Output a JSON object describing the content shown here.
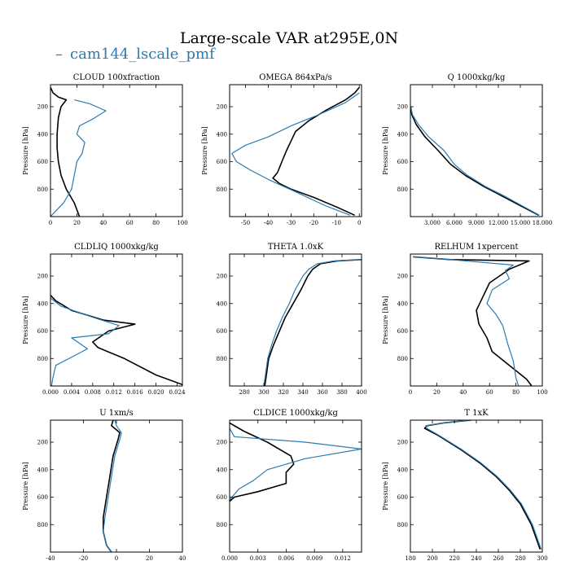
{
  "figure": {
    "title": "Large-scale VAR at295E,0N",
    "legend_label": "cam144_lscale_pmf",
    "legend_marker": "–",
    "colors": {
      "model": "#2b7bb0",
      "reference": "#000000"
    }
  },
  "chart_data": [
    {
      "type": "line",
      "title": "CLOUD  100xfraction",
      "ylabel": "Pressure [hPa]",
      "xlim": [
        0,
        100
      ],
      "ylim": [
        1000,
        40
      ],
      "y_inverted": true,
      "xticks": [
        0,
        20,
        40,
        60,
        80,
        100
      ],
      "xtick_labels": [
        "0",
        "20",
        "40",
        "60",
        "80",
        "100"
      ],
      "yticks": [
        200,
        400,
        600,
        800
      ],
      "ytick_labels": [
        "200",
        "400",
        "600",
        "800"
      ],
      "series": [
        {
          "name": "reference",
          "color": "#000000",
          "x": [
            0,
            2,
            6,
            12,
            8,
            6,
            5,
            5,
            6,
            8,
            12,
            18,
            22
          ],
          "y": [
            60,
            100,
            130,
            150,
            200,
            280,
            400,
            500,
            600,
            700,
            800,
            900,
            1000
          ]
        },
        {
          "name": "cam144_lscale_pmf",
          "color": "#2b7bb0",
          "x": [
            18,
            30,
            42,
            32,
            22,
            20,
            26,
            24,
            20,
            18,
            16,
            10,
            2,
            0
          ],
          "y": [
            150,
            180,
            230,
            290,
            340,
            400,
            460,
            540,
            600,
            700,
            800,
            900,
            980,
            1000
          ]
        }
      ]
    },
    {
      "type": "line",
      "title": "OMEGA  864xPa/s",
      "ylabel": "Pressure [hPa]",
      "xlim": [
        -57,
        1
      ],
      "ylim": [
        1000,
        40
      ],
      "y_inverted": true,
      "xticks": [
        -50,
        -40,
        -30,
        -20,
        -10,
        0
      ],
      "xtick_labels": [
        "-50",
        "-40",
        "-30",
        "-20",
        "-10",
        "0"
      ],
      "yticks": [
        200,
        400,
        600,
        800
      ],
      "ytick_labels": [
        "200",
        "400",
        "600",
        "800"
      ],
      "series": [
        {
          "name": "reference",
          "color": "#000000",
          "x": [
            0,
            -2,
            -6,
            -14,
            -22,
            -28,
            -30,
            -32,
            -34,
            -36,
            -38,
            -35,
            -30,
            -20,
            -10,
            -2
          ],
          "y": [
            60,
            100,
            150,
            220,
            300,
            380,
            450,
            520,
            600,
            680,
            720,
            760,
            800,
            860,
            930,
            990
          ]
        },
        {
          "name": "cam144_lscale_pmf",
          "color": "#2b7bb0",
          "x": [
            0,
            -6,
            -18,
            -30,
            -40,
            -50,
            -56,
            -54,
            -48,
            -40,
            -28,
            -15,
            -4
          ],
          "y": [
            100,
            170,
            260,
            340,
            420,
            480,
            540,
            600,
            660,
            730,
            820,
            920,
            990
          ]
        }
      ]
    },
    {
      "type": "line",
      "title": "Q  1000xkg/kg",
      "ylabel": "Pressure [hPa]",
      "xlim": [
        0,
        18
      ],
      "ylim": [
        1000,
        40
      ],
      "y_inverted": true,
      "xticks": [
        3,
        6,
        9,
        12,
        15,
        18
      ],
      "xtick_labels": [
        "3.000",
        "6.000",
        "9.000",
        "12.000",
        "15.000",
        "18.000"
      ],
      "yticks": [
        200,
        400,
        600,
        800
      ],
      "ytick_labels": [
        "200",
        "400",
        "600",
        "800"
      ],
      "series": [
        {
          "name": "reference",
          "color": "#000000",
          "x": [
            0.05,
            0.2,
            0.8,
            2.0,
            3.8,
            5.5,
            7.5,
            10.0,
            12.5,
            15.0,
            17.5
          ],
          "y": [
            200,
            260,
            330,
            420,
            520,
            620,
            700,
            780,
            850,
            920,
            990
          ]
        },
        {
          "name": "cam144_lscale_pmf",
          "color": "#2b7bb0",
          "x": [
            0.05,
            0.3,
            1.1,
            2.5,
            4.6,
            6.0,
            7.8,
            10.2,
            12.8,
            15.2,
            17.6
          ],
          "y": [
            200,
            260,
            330,
            420,
            520,
            620,
            700,
            780,
            850,
            920,
            990
          ]
        }
      ]
    },
    {
      "type": "line",
      "title": "CLDLIQ  1000xkg/kg",
      "ylabel": "Pressure [hPa]",
      "xlim": [
        0,
        0.025
      ],
      "ylim": [
        1000,
        40
      ],
      "y_inverted": true,
      "xticks": [
        0,
        0.004,
        0.008,
        0.012,
        0.016,
        0.02,
        0.024
      ],
      "xtick_labels": [
        "0.000",
        "0.004",
        "0.008",
        "0.012",
        "0.016",
        "0.020",
        "0.024"
      ],
      "yticks": [
        200,
        400,
        600,
        800
      ],
      "ytick_labels": [
        "200",
        "400",
        "600",
        "800"
      ],
      "series": [
        {
          "name": "reference",
          "color": "#000000",
          "x": [
            0,
            0.001,
            0.004,
            0.01,
            0.016,
            0.011,
            0.008,
            0.009,
            0.014,
            0.02,
            0.025
          ],
          "y": [
            340,
            380,
            450,
            520,
            550,
            600,
            680,
            720,
            800,
            920,
            990
          ]
        },
        {
          "name": "cam144_lscale_pmf",
          "color": "#2b7bb0",
          "x": [
            0,
            0.002,
            0.008,
            0.013,
            0.011,
            0.004,
            0.007,
            0.004,
            0.001,
            0.0004,
            0.0002
          ],
          "y": [
            360,
            420,
            500,
            560,
            620,
            650,
            730,
            790,
            850,
            950,
            1000
          ]
        }
      ]
    },
    {
      "type": "line",
      "title": "THETA  1.0xK",
      "ylabel": "",
      "xlim": [
        265,
        400
      ],
      "ylim": [
        1000,
        40
      ],
      "y_inverted": true,
      "xticks": [
        280,
        300,
        320,
        340,
        360,
        380,
        400
      ],
      "xtick_labels": [
        "280",
        "300",
        "320",
        "340",
        "360",
        "380",
        "400"
      ],
      "yticks": [
        200,
        400,
        600,
        800
      ],
      "ytick_labels": [
        "200",
        "400",
        "600",
        "800"
      ],
      "series": [
        {
          "name": "reference",
          "color": "#000000",
          "x": [
            400,
            375,
            358,
            350,
            345,
            338,
            330,
            322,
            316,
            310,
            305,
            301
          ],
          "y": [
            80,
            90,
            110,
            150,
            200,
            300,
            400,
            500,
            600,
            700,
            800,
            1000
          ]
        },
        {
          "name": "cam144_lscale_pmf",
          "color": "#2b7bb0",
          "x": [
            400,
            372,
            355,
            346,
            340,
            332,
            326,
            319,
            313,
            308,
            304,
            300
          ],
          "y": [
            80,
            90,
            110,
            150,
            200,
            300,
            400,
            500,
            600,
            700,
            800,
            1000
          ]
        }
      ]
    },
    {
      "type": "line",
      "title": "RELHUM  1xpercent",
      "ylabel": "Pressure [hPa]",
      "xlim": [
        0,
        100
      ],
      "ylim": [
        1000,
        40
      ],
      "y_inverted": true,
      "xticks": [
        0,
        20,
        40,
        60,
        80,
        100
      ],
      "xtick_labels": [
        "0",
        "20",
        "40",
        "60",
        "80",
        "100"
      ],
      "yticks": [
        200,
        400,
        600,
        800
      ],
      "ytick_labels": [
        "200",
        "400",
        "600",
        "800"
      ],
      "series": [
        {
          "name": "reference",
          "color": "#000000",
          "x": [
            2,
            30,
            90,
            75,
            60,
            55,
            50,
            52,
            58,
            62,
            75,
            88,
            92
          ],
          "y": [
            60,
            80,
            90,
            150,
            250,
            350,
            450,
            550,
            650,
            750,
            850,
            950,
            1000
          ]
        },
        {
          "name": "cam144_lscale_pmf",
          "color": "#2b7bb0",
          "x": [
            2,
            30,
            78,
            72,
            75,
            62,
            58,
            65,
            70,
            74,
            78,
            80,
            82
          ],
          "y": [
            60,
            80,
            120,
            160,
            220,
            300,
            400,
            480,
            560,
            700,
            820,
            940,
            1000
          ]
        }
      ]
    },
    {
      "type": "line",
      "title": "U  1xm/s",
      "ylabel": "Pressure [hPa]",
      "xlim": [
        -40,
        40
      ],
      "ylim": [
        1000,
        40
      ],
      "y_inverted": true,
      "xticks": [
        -40,
        -20,
        0,
        20,
        40
      ],
      "xtick_labels": [
        "-40",
        "-20",
        "0",
        "20",
        "40"
      ],
      "yticks": [
        200,
        400,
        600,
        800
      ],
      "ytick_labels": [
        "200",
        "400",
        "600",
        "800"
      ],
      "series": [
        {
          "name": "reference",
          "color": "#000000",
          "x": [
            -2,
            -3,
            2,
            1,
            -2,
            -4,
            -6,
            -8,
            -8,
            -6,
            -3
          ],
          "y": [
            40,
            80,
            130,
            180,
            300,
            450,
            600,
            750,
            850,
            950,
            1000
          ]
        },
        {
          "name": "cam144_lscale_pmf",
          "color": "#2b7bb0",
          "x": [
            -1,
            0,
            3,
            2,
            -1,
            -3,
            -5,
            -7,
            -8,
            -6,
            -3
          ],
          "y": [
            40,
            80,
            130,
            180,
            300,
            450,
            600,
            750,
            850,
            950,
            1000
          ]
        }
      ]
    },
    {
      "type": "line",
      "title": "CLDICE  1000xkg/kg",
      "ylabel": "",
      "xlim": [
        0,
        0.014
      ],
      "ylim": [
        1000,
        40
      ],
      "y_inverted": true,
      "xticks": [
        0,
        0.003,
        0.006,
        0.009,
        0.012
      ],
      "xtick_labels": [
        "0.000",
        "0.003",
        "0.006",
        "0.009",
        "0.012"
      ],
      "yticks": [
        200,
        400,
        600,
        800
      ],
      "ytick_labels": [
        "200",
        "400",
        "600",
        "800"
      ],
      "series": [
        {
          "name": "reference",
          "color": "#000000",
          "x": [
            0,
            0.0015,
            0.004,
            0.0065,
            0.0068,
            0.006,
            0.006,
            0.003,
            0.0005,
            0
          ],
          "y": [
            60,
            120,
            200,
            300,
            360,
            420,
            500,
            560,
            600,
            630
          ]
        },
        {
          "name": "cam144_lscale_pmf",
          "color": "#2b7bb0",
          "x": [
            0,
            0.0005,
            0.008,
            0.014,
            0.008,
            0.004,
            0.0025,
            0.001,
            0.0005,
            0
          ],
          "y": [
            100,
            160,
            200,
            250,
            320,
            400,
            480,
            540,
            580,
            620
          ]
        }
      ]
    },
    {
      "type": "line",
      "title": "T  1xK",
      "ylabel": "Pressure [hPa]",
      "xlim": [
        180,
        300
      ],
      "ylim": [
        1000,
        40
      ],
      "y_inverted": true,
      "xticks": [
        180,
        200,
        220,
        240,
        260,
        280,
        300
      ],
      "xtick_labels": [
        "180",
        "200",
        "220",
        "240",
        "260",
        "280",
        "300"
      ],
      "yticks": [
        200,
        400,
        600,
        800
      ],
      "ytick_labels": [
        "200",
        "400",
        "600",
        "800"
      ],
      "series": [
        {
          "name": "reference",
          "color": "#000000",
          "x": [
            235,
            210,
            195,
            193,
            205,
            225,
            243,
            258,
            270,
            280,
            290,
            298
          ],
          "y": [
            40,
            60,
            80,
            100,
            150,
            250,
            350,
            450,
            550,
            650,
            800,
            980
          ]
        },
        {
          "name": "cam144_lscale_pmf",
          "color": "#2b7bb0",
          "x": [
            235,
            210,
            194,
            195,
            206,
            226,
            244,
            259,
            271,
            281,
            291,
            299
          ],
          "y": [
            40,
            60,
            80,
            100,
            150,
            250,
            350,
            450,
            550,
            650,
            800,
            980
          ]
        }
      ]
    }
  ]
}
